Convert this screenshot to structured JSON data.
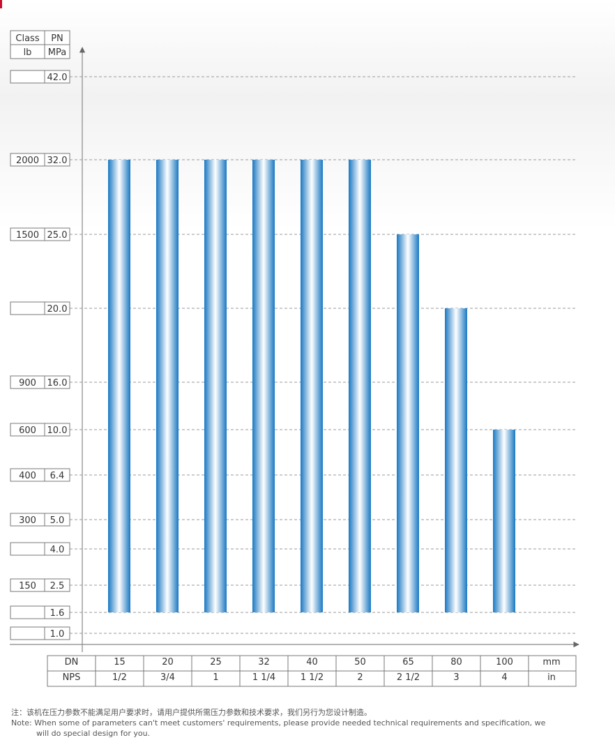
{
  "chart_data": {
    "type": "bar",
    "left_scale_headers": {
      "class_label": "Class",
      "class_unit": "lb",
      "pn_label": "PN",
      "pn_unit": "MPa"
    },
    "scale_rows": [
      {
        "mpa": 42.0,
        "mpa_label": "42.0",
        "class": ""
      },
      {
        "mpa": 32.0,
        "mpa_label": "32.0",
        "class": "2000"
      },
      {
        "mpa": 25.0,
        "mpa_label": "25.0",
        "class": "1500"
      },
      {
        "mpa": 20.0,
        "mpa_label": "20.0",
        "class": ""
      },
      {
        "mpa": 16.0,
        "mpa_label": "16.0",
        "class": "900"
      },
      {
        "mpa": 10.0,
        "mpa_label": "10.0",
        "class": "600"
      },
      {
        "mpa": 6.4,
        "mpa_label": "6.4",
        "class": "400"
      },
      {
        "mpa": 5.0,
        "mpa_label": "5.0",
        "class": "300"
      },
      {
        "mpa": 4.0,
        "mpa_label": "4.0",
        "class": ""
      },
      {
        "mpa": 2.5,
        "mpa_label": "2.5",
        "class": "150"
      },
      {
        "mpa": 1.6,
        "mpa_label": "1.6",
        "class": ""
      },
      {
        "mpa": 1.0,
        "mpa_label": "1.0",
        "class": ""
      }
    ],
    "categories": [
      "15",
      "20",
      "25",
      "32",
      "40",
      "50",
      "65",
      "80",
      "100"
    ],
    "nps": [
      "1/2",
      "3/4",
      "1",
      "1 1/4",
      "1 1/2",
      "2",
      "2 1/2",
      "3",
      "4"
    ],
    "bar_from": 1.6,
    "values": [
      32.0,
      32.0,
      32.0,
      32.0,
      32.0,
      32.0,
      25.0,
      20.0,
      10.0
    ],
    "x_table": {
      "dn_label": "DN",
      "nps_label": "NPS",
      "dn_unit": "mm",
      "nps_unit": "in"
    },
    "grid": true,
    "bar_color": "#1a78c2",
    "bar_highlight": "#ffffff"
  },
  "note": {
    "cn": "注：该机在压力参数不能满足用户要求时，请用户提供所需压力参数和技术要求，我们另行为您设计制造。",
    "en_line1": "Note: When some of parameters can't meet customers' requirements, please provide needed technical requirements and specification, we",
    "en_line2": "will do special design for you."
  }
}
